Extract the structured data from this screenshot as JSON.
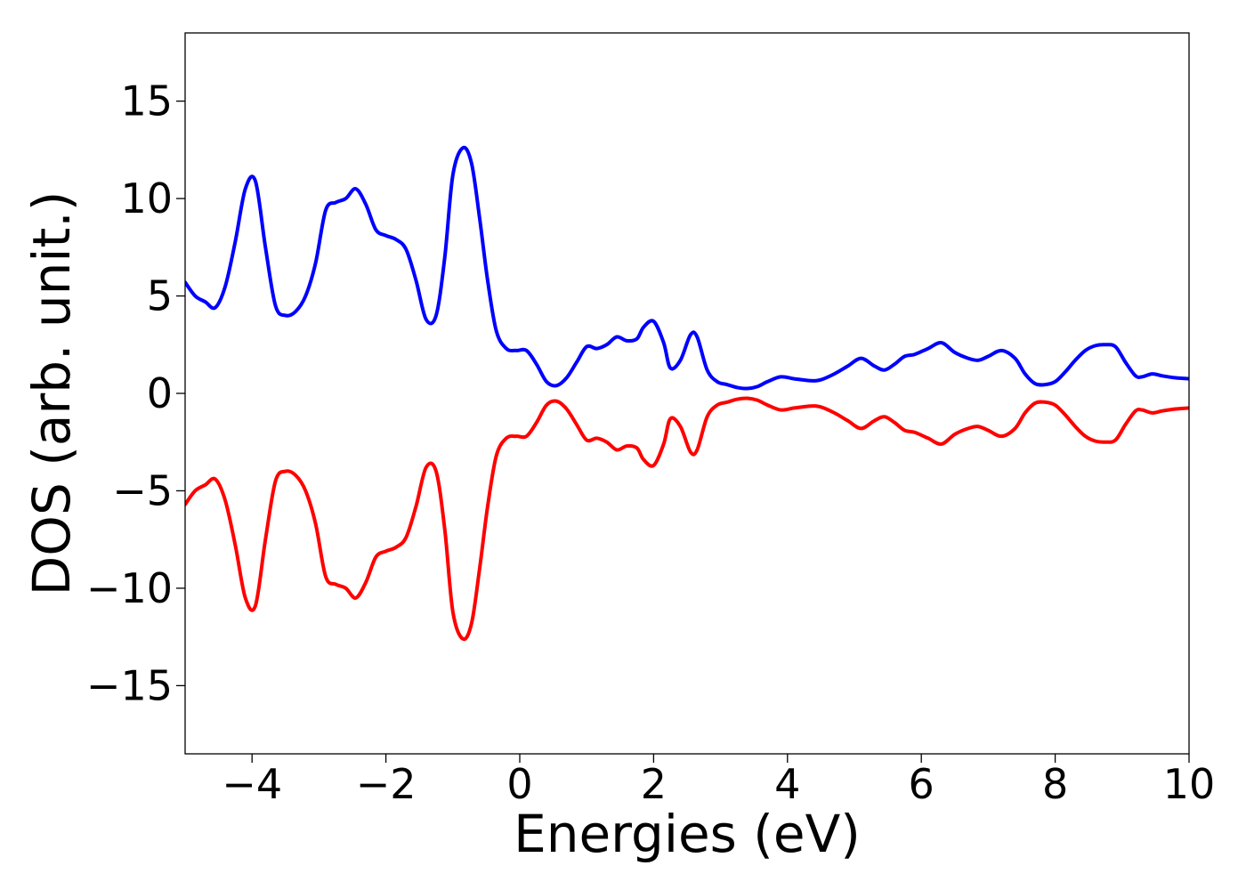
{
  "chart_data": {
    "type": "line",
    "title": "",
    "xlabel": "Energies (eV)",
    "ylabel": "DOS (arb. unit.)",
    "xlim": [
      -5,
      10
    ],
    "ylim": [
      -18.5,
      18.5
    ],
    "xticks": [
      -4,
      -2,
      0,
      2,
      4,
      6,
      8,
      10
    ],
    "xtick_labels": [
      "−4",
      "−2",
      "0",
      "2",
      "4",
      "6",
      "8",
      "10"
    ],
    "yticks": [
      -15,
      -10,
      -5,
      0,
      5,
      10,
      15
    ],
    "ytick_labels": [
      "−15",
      "−10",
      "−5",
      "0",
      "5",
      "10",
      "15"
    ],
    "grid": false,
    "legend": "none",
    "series": [
      {
        "color": "#0000ff",
        "x": [
          -5.0,
          -4.85,
          -4.7,
          -4.55,
          -4.4,
          -4.25,
          -4.1,
          -3.95,
          -3.8,
          -3.65,
          -3.5,
          -3.35,
          -3.2,
          -3.05,
          -2.9,
          -2.75,
          -2.6,
          -2.45,
          -2.3,
          -2.15,
          -2.0,
          -1.85,
          -1.7,
          -1.55,
          -1.4,
          -1.25,
          -1.12,
          -1.0,
          -0.85,
          -0.72,
          -0.6,
          -0.48,
          -0.35,
          -0.2,
          -0.05,
          0.1,
          0.25,
          0.4,
          0.55,
          0.7,
          0.85,
          1.0,
          1.15,
          1.3,
          1.45,
          1.6,
          1.75,
          1.85,
          2.0,
          2.15,
          2.25,
          2.4,
          2.55,
          2.65,
          2.8,
          2.95,
          3.1,
          3.25,
          3.4,
          3.55,
          3.7,
          3.9,
          4.1,
          4.35,
          4.5,
          4.7,
          4.9,
          5.1,
          5.3,
          5.45,
          5.6,
          5.75,
          5.9,
          6.1,
          6.3,
          6.5,
          6.7,
          6.85,
          7.0,
          7.2,
          7.4,
          7.55,
          7.7,
          7.85,
          8.0,
          8.15,
          8.3,
          8.45,
          8.6,
          8.75,
          8.9,
          9.05,
          9.2,
          9.3,
          9.45,
          9.6,
          9.8,
          10.0
        ],
        "y": [
          5.7,
          5.0,
          4.7,
          4.4,
          5.5,
          7.8,
          10.5,
          10.9,
          7.5,
          4.5,
          4.0,
          4.2,
          5.0,
          6.7,
          9.4,
          9.8,
          10.0,
          10.5,
          9.7,
          8.4,
          8.1,
          7.9,
          7.4,
          5.8,
          3.8,
          4.0,
          7.0,
          11.2,
          12.6,
          11.8,
          9.0,
          5.8,
          3.2,
          2.3,
          2.2,
          2.2,
          1.5,
          0.6,
          0.4,
          0.8,
          1.6,
          2.4,
          2.3,
          2.5,
          2.9,
          2.7,
          2.8,
          3.4,
          3.7,
          2.6,
          1.3,
          1.7,
          3.0,
          2.9,
          1.2,
          0.6,
          0.45,
          0.3,
          0.25,
          0.35,
          0.6,
          0.85,
          0.75,
          0.65,
          0.7,
          1.0,
          1.4,
          1.8,
          1.4,
          1.2,
          1.5,
          1.9,
          2.0,
          2.3,
          2.6,
          2.1,
          1.8,
          1.7,
          1.9,
          2.2,
          1.8,
          1.0,
          0.5,
          0.45,
          0.6,
          1.1,
          1.7,
          2.2,
          2.45,
          2.5,
          2.4,
          1.6,
          0.9,
          0.85,
          1.0,
          0.9,
          0.8,
          0.75
        ]
      },
      {
        "color": "#ff0000",
        "x": [
          -5.0,
          -4.85,
          -4.7,
          -4.55,
          -4.4,
          -4.25,
          -4.1,
          -3.95,
          -3.8,
          -3.65,
          -3.5,
          -3.35,
          -3.2,
          -3.05,
          -2.9,
          -2.75,
          -2.6,
          -2.45,
          -2.3,
          -2.15,
          -2.0,
          -1.85,
          -1.7,
          -1.55,
          -1.4,
          -1.25,
          -1.12,
          -1.0,
          -0.85,
          -0.72,
          -0.6,
          -0.48,
          -0.35,
          -0.2,
          -0.05,
          0.1,
          0.25,
          0.4,
          0.55,
          0.7,
          0.85,
          1.0,
          1.15,
          1.3,
          1.45,
          1.6,
          1.75,
          1.85,
          2.0,
          2.15,
          2.25,
          2.4,
          2.55,
          2.65,
          2.8,
          2.95,
          3.1,
          3.25,
          3.4,
          3.55,
          3.7,
          3.9,
          4.1,
          4.35,
          4.5,
          4.7,
          4.9,
          5.1,
          5.3,
          5.45,
          5.6,
          5.75,
          5.9,
          6.1,
          6.3,
          6.5,
          6.7,
          6.85,
          7.0,
          7.2,
          7.4,
          7.55,
          7.7,
          7.85,
          8.0,
          8.15,
          8.3,
          8.45,
          8.6,
          8.75,
          8.9,
          9.05,
          9.2,
          9.3,
          9.45,
          9.6,
          9.8,
          10.0
        ],
        "y": [
          -5.7,
          -5.0,
          -4.7,
          -4.4,
          -5.5,
          -7.8,
          -10.5,
          -10.9,
          -7.5,
          -4.5,
          -4.0,
          -4.2,
          -5.0,
          -6.7,
          -9.4,
          -9.8,
          -10.0,
          -10.5,
          -9.7,
          -8.4,
          -8.1,
          -7.9,
          -7.4,
          -5.8,
          -3.8,
          -4.0,
          -7.0,
          -11.2,
          -12.6,
          -11.8,
          -9.0,
          -5.8,
          -3.2,
          -2.3,
          -2.2,
          -2.2,
          -1.5,
          -0.6,
          -0.4,
          -0.8,
          -1.6,
          -2.4,
          -2.3,
          -2.5,
          -2.9,
          -2.7,
          -2.8,
          -3.4,
          -3.7,
          -2.6,
          -1.3,
          -1.7,
          -3.0,
          -2.9,
          -1.2,
          -0.6,
          -0.45,
          -0.3,
          -0.25,
          -0.35,
          -0.6,
          -0.85,
          -0.75,
          -0.65,
          -0.7,
          -1.0,
          -1.4,
          -1.8,
          -1.4,
          -1.2,
          -1.5,
          -1.9,
          -2.0,
          -2.3,
          -2.6,
          -2.1,
          -1.8,
          -1.7,
          -1.9,
          -2.2,
          -1.8,
          -1.0,
          -0.5,
          -0.45,
          -0.6,
          -1.1,
          -1.7,
          -2.2,
          -2.45,
          -2.5,
          -2.4,
          -1.6,
          -0.9,
          -0.85,
          -1.0,
          -0.9,
          -0.8,
          -0.75
        ]
      }
    ]
  }
}
